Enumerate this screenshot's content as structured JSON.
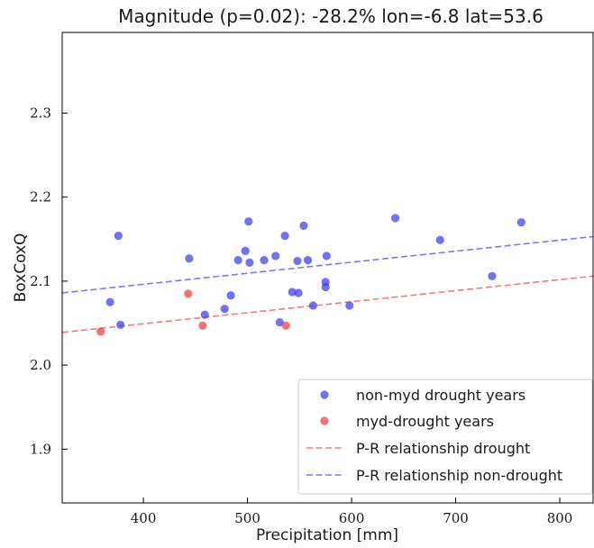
{
  "chart_data": {
    "type": "scatter",
    "title": "Magnitude (p=0.02): -28.2% lon=-6.8 lat=53.6",
    "xlabel": "Precipitation [mm]",
    "ylabel": "BoxCoxQ",
    "xlim": [
      322,
      832
    ],
    "ylim": [
      1.836,
      2.396
    ],
    "xticks": [
      400,
      500,
      600,
      700,
      800
    ],
    "yticks": [
      1.9,
      2.0,
      2.1,
      2.2,
      2.3
    ],
    "xtick_labels": [
      "400",
      "500",
      "600",
      "700",
      "800"
    ],
    "ytick_labels": [
      "1.9",
      "2.0",
      "2.1",
      "2.2",
      "2.3"
    ],
    "grid": false,
    "legend_position": "bottom-right",
    "series": [
      {
        "name": "non-myd drought years",
        "kind": "scatter",
        "color": "#3b3bf0",
        "points": [
          [
            368,
            2.075
          ],
          [
            376,
            2.154
          ],
          [
            378,
            2.048
          ],
          [
            444,
            2.127
          ],
          [
            459,
            2.06
          ],
          [
            478,
            2.067
          ],
          [
            484,
            2.083
          ],
          [
            491,
            2.125
          ],
          [
            498,
            2.136
          ],
          [
            501,
            2.171
          ],
          [
            502,
            2.122
          ],
          [
            516,
            2.125
          ],
          [
            527,
            2.13
          ],
          [
            531,
            2.051
          ],
          [
            536,
            2.154
          ],
          [
            543,
            2.087
          ],
          [
            548,
            2.124
          ],
          [
            549,
            2.086
          ],
          [
            554,
            2.166
          ],
          [
            558,
            2.125
          ],
          [
            563,
            2.071
          ],
          [
            575,
            2.093
          ],
          [
            575,
            2.099
          ],
          [
            576,
            2.13
          ],
          [
            598,
            2.071
          ],
          [
            642,
            2.175
          ],
          [
            685,
            2.149
          ],
          [
            735,
            2.106
          ],
          [
            763,
            2.17
          ]
        ]
      },
      {
        "name": "myd-drought years",
        "kind": "scatter",
        "color": "#f03b3b",
        "points": [
          [
            359,
            2.04
          ],
          [
            443,
            2.085
          ],
          [
            457,
            2.047
          ],
          [
            537,
            2.047
          ]
        ]
      },
      {
        "name": "P-R relationship drought",
        "kind": "dashed-line",
        "color": "#f47a7a",
        "points": [
          [
            322,
            2.039
          ],
          [
            832,
            2.106
          ]
        ]
      },
      {
        "name": "P-R relationship non-drought",
        "kind": "dashed-line",
        "color": "#7a7af4",
        "points": [
          [
            322,
            2.086
          ],
          [
            832,
            2.153
          ]
        ]
      }
    ]
  }
}
